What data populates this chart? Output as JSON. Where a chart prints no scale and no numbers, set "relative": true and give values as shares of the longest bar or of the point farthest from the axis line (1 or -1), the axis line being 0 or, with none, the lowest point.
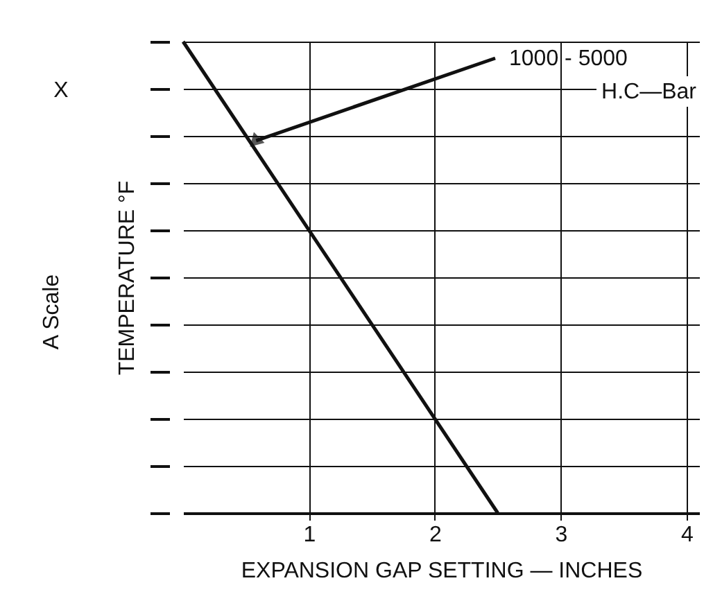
{
  "chart_data": {
    "type": "line",
    "relative": true,
    "xlabel": "EXPANSION GAP SETTING — INCHES",
    "ylabel": "TEMPERATURE °F",
    "x": [
      0,
      2.5
    ],
    "series": [
      {
        "color": "#111111",
        "values": [
          1,
          0
        ]
      }
    ],
    "xlim": [
      0,
      4.1
    ],
    "xticks": [
      1,
      2,
      3,
      4
    ],
    "grid": true,
    "annotations": [
      {
        "text": "1000 - 5000",
        "x": 0.58,
        "y": 0.79
      },
      "H.C—Bar",
      "X",
      "A Scale"
    ]
  }
}
